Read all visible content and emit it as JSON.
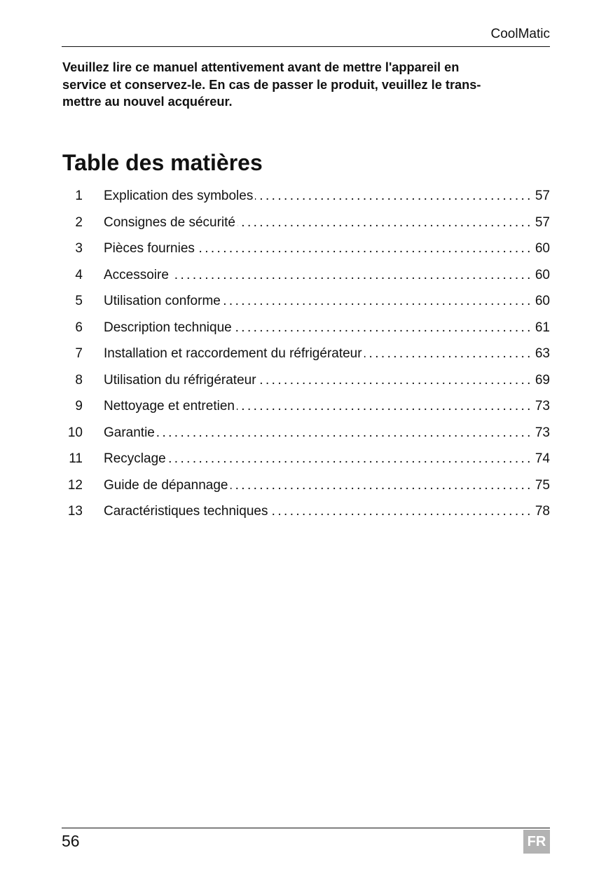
{
  "header": {
    "title": "CoolMatic"
  },
  "intro": {
    "lines": [
      "Veuillez lire ce manuel attentivement avant de mettre l'appareil en",
      "service et conservez-le. En cas de passer le produit, veuillez le trans-",
      "mettre au nouvel acquéreur."
    ]
  },
  "toc": {
    "title": "Table des matières",
    "items": [
      {
        "num": "1",
        "label": "Explication des symboles",
        "page": "57"
      },
      {
        "num": "2",
        "label": "Consignes de sécurité",
        "page": "57"
      },
      {
        "num": "3",
        "label": "Pièces fournies",
        "page": "60"
      },
      {
        "num": "4",
        "label": "Accessoire",
        "page": "60"
      },
      {
        "num": "5",
        "label": "Utilisation conforme",
        "page": "60"
      },
      {
        "num": "6",
        "label": "Description technique",
        "page": "61"
      },
      {
        "num": "7",
        "label": "Installation et raccordement du réfrigérateur",
        "page": "63"
      },
      {
        "num": "8",
        "label": "Utilisation du réfrigérateur",
        "page": "69"
      },
      {
        "num": "9",
        "label": "Nettoyage et entretien",
        "page": "73"
      },
      {
        "num": "10",
        "label": "Garantie",
        "page": "73"
      },
      {
        "num": "11",
        "label": "Recyclage",
        "page": "74"
      },
      {
        "num": "12",
        "label": "Guide de dépannage",
        "page": "75"
      },
      {
        "num": "13",
        "label": "Caractéristiques techniques",
        "page": "78"
      }
    ]
  },
  "footer": {
    "page_number": "56",
    "language": "FR",
    "badge_color": "#b3b3b3"
  }
}
